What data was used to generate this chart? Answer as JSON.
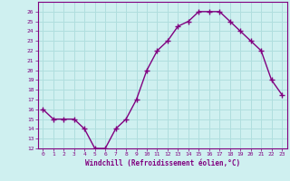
{
  "x": [
    0,
    1,
    2,
    3,
    4,
    5,
    6,
    7,
    8,
    9,
    10,
    11,
    12,
    13,
    14,
    15,
    16,
    17,
    18,
    19,
    20,
    21,
    22,
    23
  ],
  "y": [
    16,
    15,
    15,
    15,
    14,
    12,
    12,
    14,
    15,
    17,
    20,
    22,
    23,
    24.5,
    25,
    26,
    26,
    26,
    25,
    24,
    23,
    22,
    19,
    17.5
  ],
  "xlabel": "Windchill (Refroidissement éolien,°C)",
  "ylim": [
    12,
    27
  ],
  "xlim": [
    -0.5,
    23.5
  ],
  "yticks": [
    12,
    13,
    14,
    15,
    16,
    17,
    18,
    19,
    20,
    21,
    22,
    23,
    24,
    25,
    26
  ],
  "xticks": [
    0,
    1,
    2,
    3,
    4,
    5,
    6,
    7,
    8,
    9,
    10,
    11,
    12,
    13,
    14,
    15,
    16,
    17,
    18,
    19,
    20,
    21,
    22,
    23
  ],
  "line_color": "#800080",
  "bg_color": "#cff0f0",
  "grid_color": "#b0dede",
  "marker": "+",
  "marker_size": 4,
  "line_width": 1.0
}
